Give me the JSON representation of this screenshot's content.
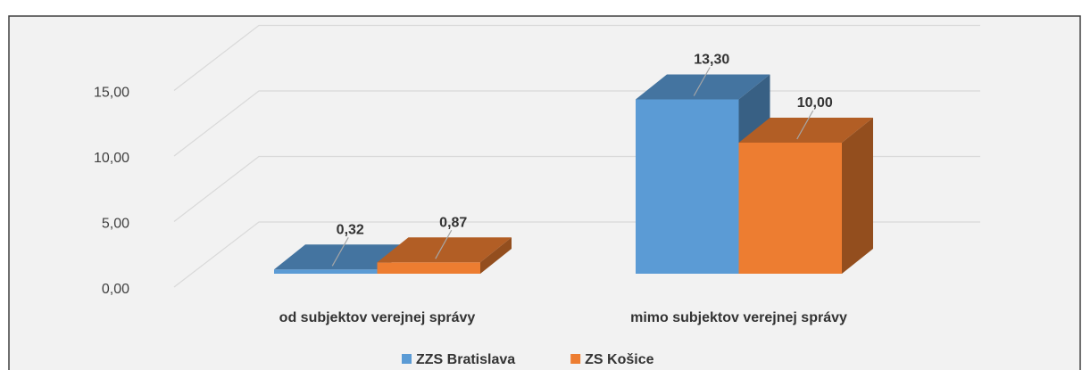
{
  "chart_data": {
    "type": "bar3d",
    "categories": [
      "od subjektov verejnej správy",
      "mimo subjektov verejnej správy"
    ],
    "series": [
      {
        "name": "ZZS Bratislava",
        "color": "#5b9bd5",
        "values": [
          0.32,
          13.3
        ],
        "value_labels": [
          "0,32",
          "13,30"
        ]
      },
      {
        "name": "ZS Košice",
        "color": "#ed7d31",
        "values": [
          0.87,
          10.0
        ],
        "value_labels": [
          "0,87",
          "10,00"
        ]
      }
    ],
    "ylim": [
      0,
      20
    ],
    "yticks": [
      {
        "value": 0,
        "label": "0,00"
      },
      {
        "value": 5,
        "label": "5,00"
      },
      {
        "value": 10,
        "label": "10,00"
      },
      {
        "value": 15,
        "label": "15,00"
      }
    ],
    "grid": true,
    "legend": "bottom"
  }
}
